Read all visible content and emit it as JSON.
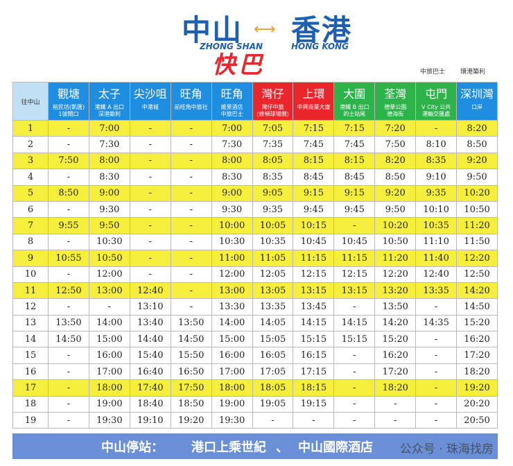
{
  "header": {
    "title_left": "中山",
    "title_right": "香港",
    "sub_left": "ZHONG SHAN",
    "sub_right": "HONG KONG",
    "title_main": "快巴",
    "logo_1": "中旅巴士",
    "logo_2": "環港築利"
  },
  "table": {
    "corner": "往中山",
    "columns": [
      {
        "name": "觀塘",
        "stop": "裕民坊(凱匯)\n1號閘口",
        "color": "#1f8ee0"
      },
      {
        "name": "太子",
        "stop": "港鐵 A 出口\n深港築利",
        "color": "#1f8ee0"
      },
      {
        "name": "尖沙咀",
        "stop": "中港城",
        "color": "#1f8ee0"
      },
      {
        "name": "旺角",
        "stop": "前旺角中旅社",
        "color": "#1f8ee0"
      },
      {
        "name": "旺角",
        "stop": "維景酒店\n中旅巴士",
        "color": "#1f8ee0"
      },
      {
        "name": "灣仔",
        "stop": "灣仔中旅\n(修頓球場側)",
        "color": "#e8262c"
      },
      {
        "name": "上環",
        "stop": "中興商業大廈",
        "color": "#e8262c"
      },
      {
        "name": "大圍",
        "stop": "港鐵 B 出口\n的士站尾",
        "color": "#2eb24a"
      },
      {
        "name": "荃灣",
        "stop": "德華公園\n德海街",
        "color": "#2eb24a"
      },
      {
        "name": "屯門",
        "stop": "V City 公共\n運輸交匯處",
        "color": "#2eb24a"
      },
      {
        "name": "深圳灣",
        "stop": "口岸",
        "color": "#1f8ee0"
      }
    ],
    "highlight_color": "#f6ee3c",
    "highlight_rows": [
      0,
      2,
      4,
      6,
      8,
      10,
      16
    ],
    "rows": [
      [
        "1",
        "-",
        "7:00",
        "-",
        "-",
        "7:00",
        "7:05",
        "7:15",
        "7:15",
        "7:20",
        "-",
        "8:20"
      ],
      [
        "2",
        "-",
        "7:30",
        "-",
        "-",
        "7:30",
        "7:35",
        "7:45",
        "7:45",
        "7:50",
        "8:10",
        "8:50"
      ],
      [
        "3",
        "7:50",
        "8:00",
        "-",
        "-",
        "8:00",
        "8:05",
        "8:15",
        "8:15",
        "8:20",
        "8:35",
        "9:20"
      ],
      [
        "4",
        "-",
        "8:30",
        "-",
        "-",
        "8:30",
        "8:35",
        "8:45",
        "8:45",
        "8:50",
        "9:10",
        "9:50"
      ],
      [
        "5",
        "8:50",
        "9:00",
        "-",
        "-",
        "9:00",
        "9:05",
        "9:15",
        "9:15",
        "9:20",
        "9:35",
        "10:20"
      ],
      [
        "6",
        "-",
        "9:30",
        "-",
        "-",
        "9:30",
        "9:35",
        "9:45",
        "9:45",
        "9:50",
        "10:10",
        "10:50"
      ],
      [
        "7",
        "9:55",
        "9:50",
        "-",
        "-",
        "10:00",
        "10:05",
        "10:15",
        "-",
        "10:20",
        "10:35",
        "11:20"
      ],
      [
        "8",
        "-",
        "10:30",
        "-",
        "-",
        "10:30",
        "10:35",
        "10:45",
        "10:45",
        "10:50",
        "11:10",
        "11:50"
      ],
      [
        "9",
        "10:55",
        "10:50",
        "-",
        "-",
        "11:00",
        "11:05",
        "11:15",
        "11:15",
        "11:20",
        "11:40",
        "12:20"
      ],
      [
        "10",
        "-",
        "12:00",
        "-",
        "-",
        "12:00",
        "12:05",
        "12:15",
        "12:15",
        "12:20",
        "12:40",
        "12:50"
      ],
      [
        "11",
        "12:50",
        "13:00",
        "12:40",
        "-",
        "13:00",
        "13:05",
        "13:15",
        "13:15",
        "13:20",
        "13:35",
        "14:20"
      ],
      [
        "12",
        "-",
        "-",
        "13:10",
        "-",
        "13:30",
        "13:35",
        "13:45",
        "-",
        "13:50",
        "-",
        "14:50"
      ],
      [
        "13",
        "13:50",
        "14:00",
        "13:40",
        "13:50",
        "14:00",
        "14:05",
        "14:15",
        "14:15",
        "14:20",
        "14:35",
        "15:20"
      ],
      [
        "14",
        "14:50",
        "15:00",
        "14:40",
        "14:50",
        "15:00",
        "15:05",
        "15:15",
        "15:15",
        "15:20",
        "-",
        "16:20"
      ],
      [
        "15",
        "-",
        "16:00",
        "15:40",
        "15:50",
        "16:00",
        "16:05",
        "16:15",
        "-",
        "16:20",
        "-",
        "17:20"
      ],
      [
        "16",
        "-",
        "17:00",
        "16:40",
        "16:50",
        "17:00",
        "17:05",
        "17:15",
        "-",
        "17:20",
        "-",
        "18:20"
      ],
      [
        "17",
        "-",
        "18:00",
        "17:40",
        "17:50",
        "18:00",
        "18:05",
        "18:15",
        "-",
        "18:20",
        "-",
        "19:20"
      ],
      [
        "18",
        "-",
        "19:00",
        "18:40",
        "18:50",
        "19:00",
        "19:05",
        "19:15",
        "-",
        "-",
        "-",
        "20:20"
      ],
      [
        "19",
        "-",
        "19:30",
        "19:10",
        "19:20",
        "19:30",
        "-",
        "-",
        "-",
        "-",
        "-",
        "20:50"
      ]
    ]
  },
  "footer": {
    "label": "中山停站：",
    "stop_1": "港口上乘世紀",
    "separator": "、",
    "stop_2": "中山國際酒店",
    "watermark": "公众号 · 珠海找房"
  }
}
